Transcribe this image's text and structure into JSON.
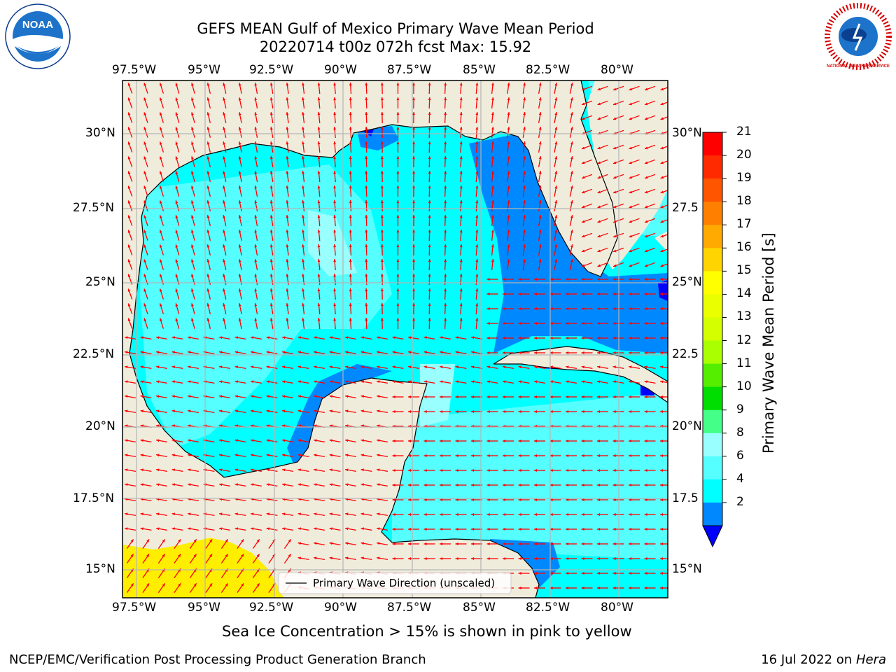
{
  "header": {
    "title_line1": "GEFS MEAN Gulf of Mexico Primary Wave Mean Period",
    "title_line2": "20220714 t00z 072h fcst   Max: 15.92"
  },
  "logos": {
    "left": "NOAA",
    "right": "NATIONAL WEATHER SERVICE"
  },
  "axes": {
    "lon_labels": [
      "97.5°W",
      "95°W",
      "92.5°W",
      "90°W",
      "87.5°W",
      "85°W",
      "82.5°W",
      "80°W"
    ],
    "lat_labels_left": [
      "30°N",
      "27.5°N",
      "25°N",
      "22.5°N",
      "20°N",
      "17.5°N",
      "15°N"
    ],
    "lat_labels_right": [
      "30°N",
      "27.5",
      "25°N",
      "22.5",
      "20°N",
      "17.5",
      "15°N"
    ]
  },
  "legend": {
    "label": "Primary Wave Direction (unscaled)"
  },
  "colorbar": {
    "label": "Primary Wave Mean Period [s]",
    "ticks": [
      "21",
      "20",
      "19",
      "18",
      "17",
      "16",
      "15",
      "14",
      "13",
      "12",
      "11",
      "10",
      "9",
      "8",
      "6",
      "4",
      "2"
    ],
    "colors": [
      "#ff0000",
      "#ff2a00",
      "#ff5500",
      "#ff8000",
      "#ffaa00",
      "#ffd400",
      "#ffff00",
      "#eaff00",
      "#d4ff00",
      "#aaff00",
      "#55ee00",
      "#00dd00",
      "#44ff88",
      "#99ffff",
      "#55ffff",
      "#00ffff",
      "#0088ff"
    ],
    "under_color": "#0000ff"
  },
  "notes": {
    "ice": "Sea Ice Concentration > 15% is shown in pink to yellow"
  },
  "footer": {
    "left": "NCEP/EMC/Verification Post Processing Product Generation Branch",
    "right_prefix": "16 Jul 2022 on ",
    "right_host": "Hera"
  },
  "map_colors": {
    "land": "#efecdc",
    "water_4_6": "#00ffff",
    "water_6_8": "#55ffff",
    "water_8_9": "#99ffff",
    "water_2_4": "#0088ff",
    "water_lt2": "#0000ff",
    "ice": "#ffee00",
    "arrow": "#ff0000",
    "grid": "#b4b4b4"
  }
}
